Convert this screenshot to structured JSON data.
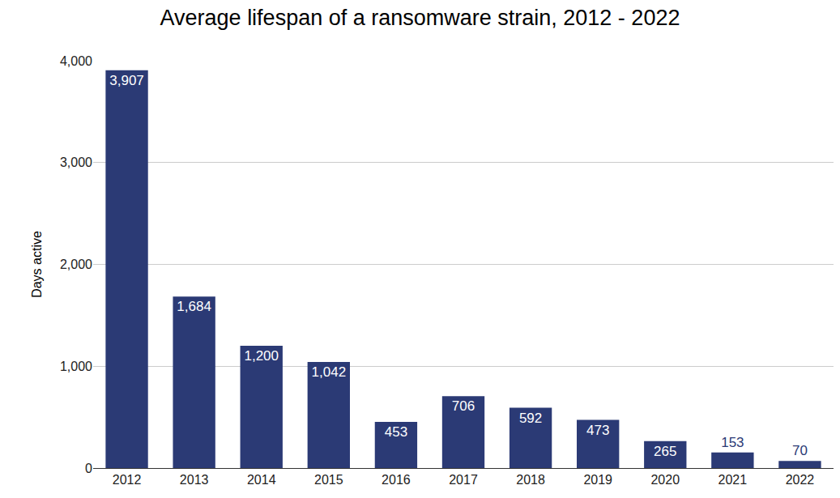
{
  "chart_data": {
    "type": "bar",
    "title": "Average lifespan of a ransomware strain, 2012 - 2022",
    "y_label": "Days active",
    "categories": [
      "2012",
      "2013",
      "2014",
      "2015",
      "2016",
      "2017",
      "2018",
      "2019",
      "2020",
      "2021",
      "2022"
    ],
    "values": [
      3907,
      1684,
      1200,
      1042,
      453,
      706,
      592,
      473,
      265,
      153,
      70
    ],
    "value_labels": [
      "3,907",
      "1,684",
      "1,200",
      "1,042",
      "453",
      "706",
      "592",
      "473",
      "265",
      "153",
      "70"
    ],
    "color": "#2b3a75",
    "ylim": [
      0,
      4000
    ],
    "yticks": [
      0,
      {
        "value": 1000,
        "label": "1,000"
      },
      {
        "value": 2000,
        "label": "2,000"
      },
      {
        "value": 3000,
        "label": "3,000"
      },
      {
        "value": 4000,
        "label": "4,000"
      }
    ],
    "grid": true,
    "data_labels": true
  }
}
